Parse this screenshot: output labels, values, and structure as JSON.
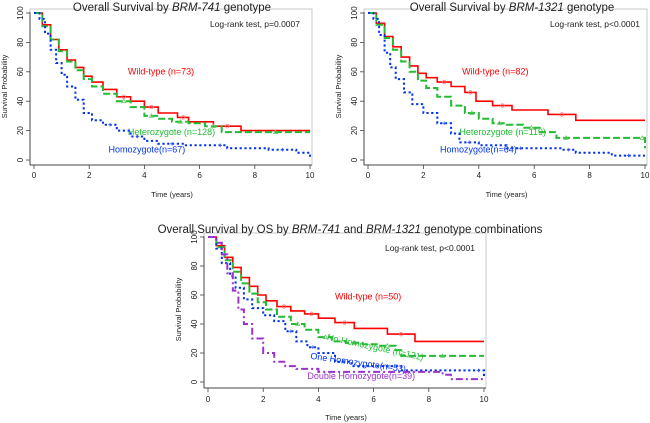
{
  "chart_data": [
    {
      "type": "line",
      "subtype": "kaplan-meier",
      "title_parts": [
        {
          "text": "Overall Survival  by ",
          "italic": false
        },
        {
          "text": "BRM-741",
          "italic": true
        },
        {
          "text": " genotype",
          "italic": false
        }
      ],
      "xlabel": "Time (years)",
      "ylabel": "Survival Probability",
      "xlim": [
        0,
        10
      ],
      "ylim": [
        0,
        100
      ],
      "xticks": [
        0,
        2,
        4,
        6,
        8,
        10
      ],
      "yticks": [
        0,
        20,
        40,
        60,
        80,
        100
      ],
      "annotation": "Log-rank test, p=0.0007",
      "annotation_position": "top-right",
      "series": [
        {
          "name": "Wild-type (n=73)",
          "color": "#ff0000",
          "style": "solid",
          "x": [
            0,
            0.3,
            0.6,
            0.9,
            1.2,
            1.5,
            1.8,
            2.1,
            2.5,
            3.0,
            3.5,
            4.0,
            4.5,
            5.2,
            5.6,
            6.5,
            7.5,
            10
          ],
          "y": [
            100,
            92,
            82,
            75,
            68,
            63,
            57,
            53,
            48,
            43,
            40,
            36,
            32,
            29,
            26,
            23,
            20,
            20
          ],
          "label": "Wild-type (n=73)"
        },
        {
          "name": "Heterozygote (n=128)",
          "color": "#22bb33",
          "style": "dashed",
          "x": [
            0,
            0.3,
            0.6,
            0.9,
            1.2,
            1.5,
            1.8,
            2.1,
            2.5,
            3.0,
            3.5,
            4.0,
            4.5,
            5.0,
            5.6,
            6.2,
            6.8,
            7.5,
            10
          ],
          "y": [
            100,
            91,
            82,
            74,
            67,
            61,
            55,
            50,
            45,
            40,
            36,
            30,
            28,
            26,
            25,
            23,
            19,
            19,
            19
          ],
          "label": "Heterozygote (n=128)"
        },
        {
          "name": "Homozygote(n=67)",
          "color": "#0033ee",
          "style": "dotted",
          "x": [
            0,
            0.2,
            0.4,
            0.6,
            0.8,
            1.0,
            1.2,
            1.5,
            1.8,
            2.1,
            2.5,
            3.0,
            3.5,
            4.0,
            4.5,
            5.5,
            6.5,
            7.0,
            8.5,
            9.5,
            10
          ],
          "y": [
            100,
            96,
            86,
            75,
            66,
            58,
            50,
            41,
            32,
            27,
            24,
            20,
            16,
            13,
            11,
            10,
            10,
            8,
            7,
            5,
            1
          ],
          "label": "Homozygote(n=67)"
        }
      ]
    },
    {
      "type": "line",
      "subtype": "kaplan-meier",
      "title_parts": [
        {
          "text": "Overall Survival  by ",
          "italic": false
        },
        {
          "text": "BRM-1321",
          "italic": true
        },
        {
          "text": " genotype",
          "italic": false
        }
      ],
      "xlabel": "Time (years)",
      "ylabel": "Survival Probability",
      "xlim": [
        0,
        10
      ],
      "ylim": [
        0,
        100
      ],
      "xticks": [
        0,
        2,
        4,
        6,
        8,
        10
      ],
      "yticks": [
        0,
        20,
        40,
        60,
        80,
        100
      ],
      "annotation": "Log-rank test, p<0.0001",
      "annotation_position": "top-right",
      "series": [
        {
          "name": "Wild-type (n=82)",
          "color": "#ff0000",
          "style": "solid",
          "x": [
            0,
            0.3,
            0.6,
            0.9,
            1.2,
            1.5,
            1.8,
            2.1,
            2.5,
            3.0,
            3.5,
            3.9,
            4.5,
            5.2,
            6.5,
            7.5,
            10
          ],
          "y": [
            100,
            93,
            84,
            77,
            70,
            64,
            59,
            56,
            53,
            50,
            46,
            40,
            37,
            34,
            31,
            27,
            27
          ],
          "label": "Wild-type (n=82)"
        },
        {
          "name": "Heterozygote (n=119)",
          "color": "#22bb33",
          "style": "dashed",
          "x": [
            0,
            0.3,
            0.6,
            0.9,
            1.2,
            1.5,
            1.8,
            2.1,
            2.5,
            3.0,
            3.5,
            4.0,
            4.5,
            5.0,
            5.6,
            6.2,
            6.8,
            7.5,
            9.8,
            10
          ],
          "y": [
            100,
            92,
            83,
            75,
            67,
            60,
            54,
            49,
            43,
            37,
            32,
            28,
            25,
            24,
            22,
            19,
            15,
            15,
            15,
            8
          ],
          "label": "Heterozygote (n=119)"
        },
        {
          "name": "Homozygote(n=64)",
          "color": "#0033ee",
          "style": "dotted",
          "x": [
            0,
            0.2,
            0.4,
            0.6,
            0.8,
            1.0,
            1.3,
            1.6,
            2.0,
            2.5,
            3.0,
            3.3,
            4.0,
            5.0,
            6.0,
            7.0,
            7.5,
            8.8,
            10
          ],
          "y": [
            100,
            96,
            85,
            73,
            63,
            55,
            46,
            38,
            32,
            25,
            18,
            12,
            10,
            8,
            8,
            7,
            5,
            3,
            3
          ],
          "label": "Homozygote(n=64)"
        }
      ]
    },
    {
      "type": "line",
      "subtype": "kaplan-meier",
      "title_parts": [
        {
          "text": "Overall Survival  by OS by ",
          "italic": false
        },
        {
          "text": "BRM-741",
          "italic": true
        },
        {
          "text": " and ",
          "italic": false
        },
        {
          "text": "BRM-1321",
          "italic": true
        },
        {
          "text": " genotype combinations",
          "italic": false
        }
      ],
      "xlabel": "Time (years)",
      "ylabel": "Survival Probability",
      "xlim": [
        0,
        10
      ],
      "ylim": [
        0,
        100
      ],
      "xticks": [
        0,
        2,
        4,
        6,
        8,
        10
      ],
      "yticks": [
        0,
        20,
        40,
        60,
        80,
        100
      ],
      "annotation": "Log-rank test, p<0.0001",
      "annotation_position": "top-right",
      "series": [
        {
          "name": "Wild-type (n=50)",
          "color": "#ff0000",
          "style": "solid",
          "x": [
            0,
            0.3,
            0.6,
            0.9,
            1.2,
            1.5,
            1.8,
            2.1,
            2.5,
            3.0,
            3.5,
            4.0,
            4.6,
            5.3,
            6.5,
            7.5,
            10
          ],
          "y": [
            100,
            94,
            86,
            79,
            72,
            66,
            60,
            56,
            52,
            49,
            47,
            44,
            41,
            37,
            33,
            28,
            28
          ],
          "label": "Wild-type (n=50)"
        },
        {
          "name": "No Homozygote (n=121)",
          "color": "#22bb33",
          "style": "dashed",
          "x": [
            0,
            0.3,
            0.6,
            0.9,
            1.2,
            1.5,
            1.8,
            2.1,
            2.5,
            3.0,
            3.5,
            4.0,
            4.5,
            5.0,
            5.6,
            6.2,
            6.8,
            7.0,
            10
          ],
          "y": [
            100,
            93,
            84,
            76,
            68,
            61,
            55,
            50,
            45,
            40,
            36,
            31,
            28,
            27,
            26,
            25,
            22,
            18,
            18
          ],
          "label": "No Homozygote (n=121)"
        },
        {
          "name": "One Homozygote(n=53)",
          "color": "#0033ee",
          "style": "dotted",
          "x": [
            0,
            0.3,
            0.5,
            0.8,
            1.0,
            1.3,
            1.6,
            2.0,
            2.4,
            2.8,
            3.2,
            3.6,
            4.0,
            4.6,
            5.2,
            6.0,
            7.0,
            9.6,
            10
          ],
          "y": [
            100,
            92,
            82,
            73,
            65,
            57,
            51,
            46,
            42,
            35,
            28,
            24,
            20,
            14,
            11,
            11,
            8,
            8,
            3
          ],
          "label": "One Homozygote(n=53)"
        },
        {
          "name": "Double Homozygote(n=39)",
          "color": "#9933cc",
          "style": "dashdot",
          "x": [
            0,
            0.3,
            0.5,
            0.7,
            0.9,
            1.1,
            1.3,
            1.6,
            2.0,
            2.4,
            2.8,
            3.2,
            4.0,
            6.0,
            7.5,
            8.5,
            8.8,
            10
          ],
          "y": [
            100,
            96,
            88,
            75,
            63,
            50,
            40,
            30,
            20,
            14,
            11,
            9,
            7,
            7,
            7,
            5,
            2,
            2
          ],
          "label": "Double Homozygote(n=39)"
        }
      ]
    }
  ]
}
